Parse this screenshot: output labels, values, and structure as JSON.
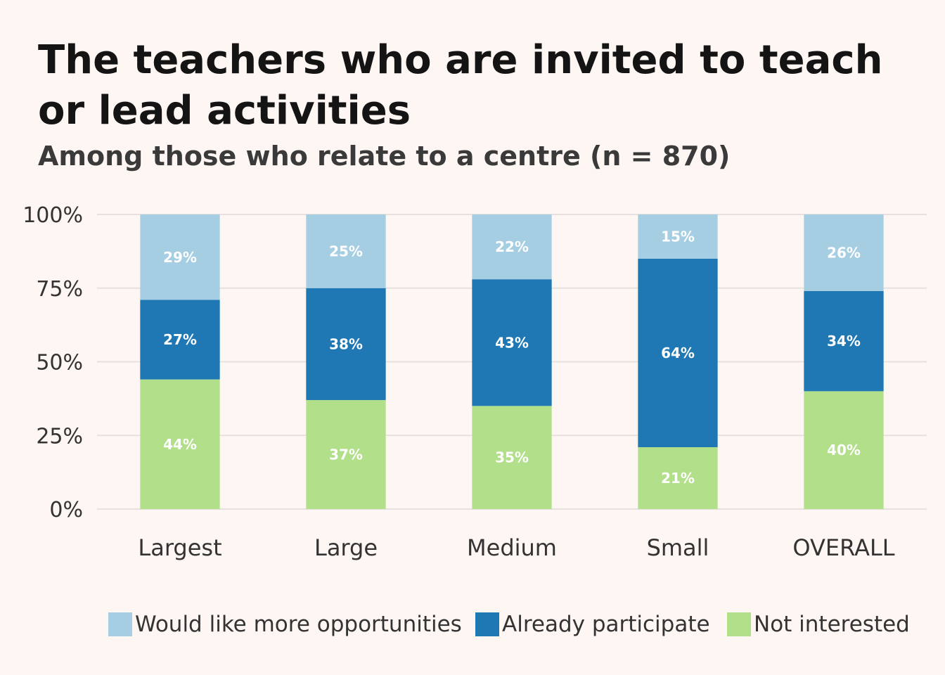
{
  "title": "The teachers who are invited to teach or lead activities",
  "subtitle": "Among those who relate to a centre (n = 870)",
  "chart_data": {
    "type": "bar",
    "stacked": true,
    "categories": [
      "Largest",
      "Large",
      "Medium",
      "Small",
      "OVERALL"
    ],
    "series": [
      {
        "name": "Not interested",
        "color": "#b2df8a",
        "values": [
          44,
          37,
          35,
          21,
          40
        ],
        "labels": [
          "44%",
          "37%",
          "35%",
          "21%",
          "40%"
        ]
      },
      {
        "name": "Already participate",
        "color": "#1f78b4",
        "values": [
          27,
          38,
          43,
          64,
          34
        ],
        "labels": [
          "27%",
          "38%",
          "43%",
          "64%",
          "34%"
        ]
      },
      {
        "name": "Would like more opportunities",
        "color": "#a6cee3",
        "values": [
          29,
          25,
          22,
          15,
          26
        ],
        "labels": [
          "29%",
          "25%",
          "22%",
          "15%",
          "26%"
        ]
      }
    ],
    "yticks": [
      0,
      25,
      50,
      75,
      100
    ],
    "ytick_labels": [
      "0%",
      "25%",
      "50%",
      "75%",
      "100%"
    ],
    "ylim": [
      0,
      100
    ],
    "grid": true,
    "legend_position": "bottom"
  },
  "legend": [
    {
      "label": "Would like more opportunities",
      "color": "#a6cee3"
    },
    {
      "label": "Already participate",
      "color": "#1f78b4"
    },
    {
      "label": "Not interested",
      "color": "#b2df8a"
    }
  ]
}
